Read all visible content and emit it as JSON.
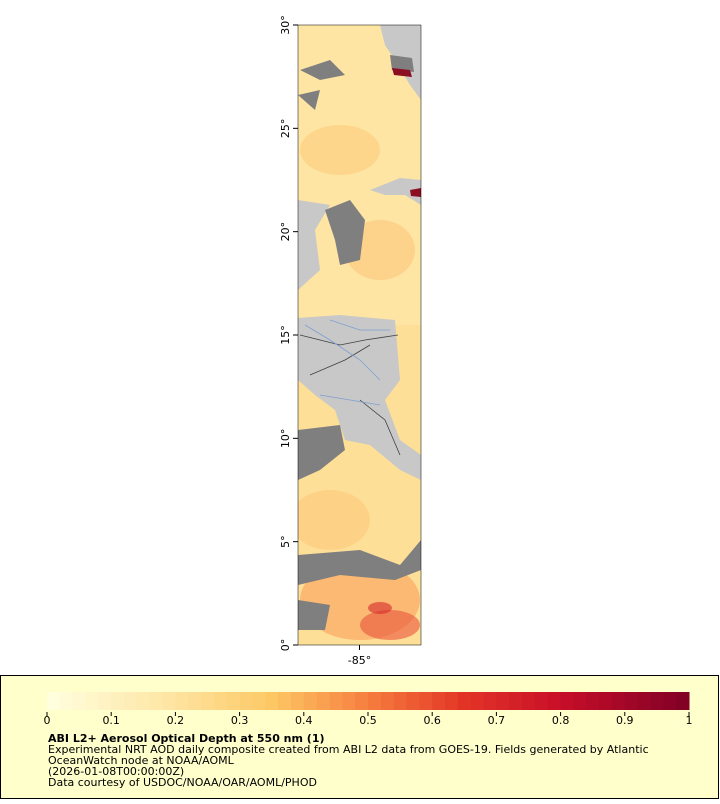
{
  "map": {
    "xlim": [
      -88,
      -82
    ],
    "ylim": [
      0,
      30
    ],
    "yticks": [
      {
        "value": 0,
        "label": "0°"
      },
      {
        "value": 5,
        "label": "5°"
      },
      {
        "value": 10,
        "label": "10°"
      },
      {
        "value": 15,
        "label": "15°"
      },
      {
        "value": 20,
        "label": "20°"
      },
      {
        "value": 25,
        "label": "25°"
      },
      {
        "value": 30,
        "label": "30°"
      }
    ],
    "xticks": [
      {
        "value": -85,
        "label": "-85°"
      }
    ]
  },
  "colorbar": {
    "range": [
      0,
      1
    ],
    "ticks": [
      0,
      0.1,
      0.2,
      0.3,
      0.4,
      0.5,
      0.6,
      0.7,
      0.8,
      0.9,
      1
    ]
  },
  "legend": {
    "title": "ABI L2+ Aerosol Optical Depth at 550 nm (1)",
    "lines": [
      "Experimental NRT AOD daily composite created from ABI L2 data from GOES-19. Fields generated by Atlantic",
      "OceanWatch node at NOAA/AOML",
      "(2026-01-08T00:00:00Z)",
      "Data courtesy of USDOC/NOAA/OAR/AOML/PHOD"
    ]
  }
}
